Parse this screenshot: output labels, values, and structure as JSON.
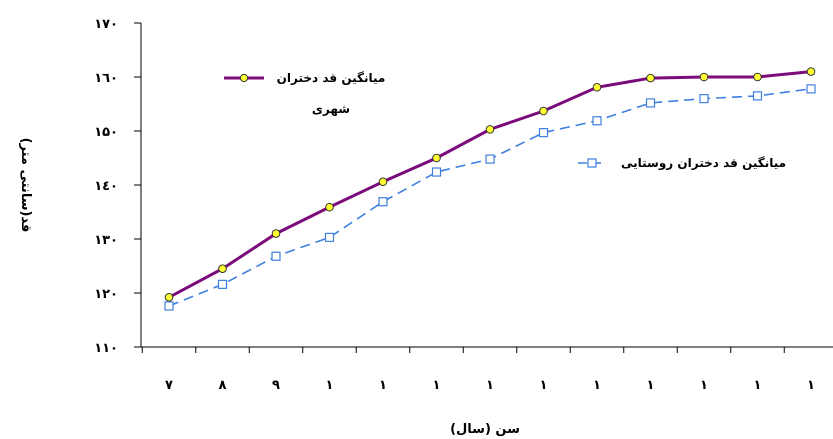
{
  "chart_data": {
    "type": "line",
    "xlabel": "سن (سال)",
    "ylabel": "قد(سانتی متر)",
    "ylim": [
      110,
      170
    ],
    "yticks": [
      110,
      120,
      130,
      140,
      150,
      160,
      170
    ],
    "ytick_labels": [
      "۱۱۰",
      "۱۲۰",
      "۱۳۰",
      "۱٤۰",
      "۱۵۰",
      "۱٦۰",
      "۱۷۰"
    ],
    "x_tick_labels": [
      "۷",
      "۸",
      "۹",
      "۱",
      "۱",
      "۱",
      "۱",
      "۱",
      "۱",
      "۱",
      "۱",
      "۱",
      "۱"
    ],
    "grid": false,
    "series": [
      {
        "name": "میانگین قد دختران شهری",
        "color": "#7B0A7B",
        "marker": "circle",
        "marker_fill": "#FFFF33",
        "line_style": "solid",
        "values": [
          119.2,
          124.5,
          131,
          135.9,
          140.6,
          145,
          150.3,
          153.7,
          158.1,
          159.8,
          160,
          160,
          161
        ]
      },
      {
        "name": "میانگین قد دختران روستایی",
        "color": "#3F7FE0",
        "marker": "square",
        "marker_fill": "#FFFFFF",
        "line_style": "dashed",
        "values": [
          117.6,
          121.6,
          126.8,
          130.3,
          136.9,
          142.4,
          144.8,
          149.7,
          151.9,
          155.2,
          156,
          156.5,
          157.8
        ]
      }
    ]
  }
}
